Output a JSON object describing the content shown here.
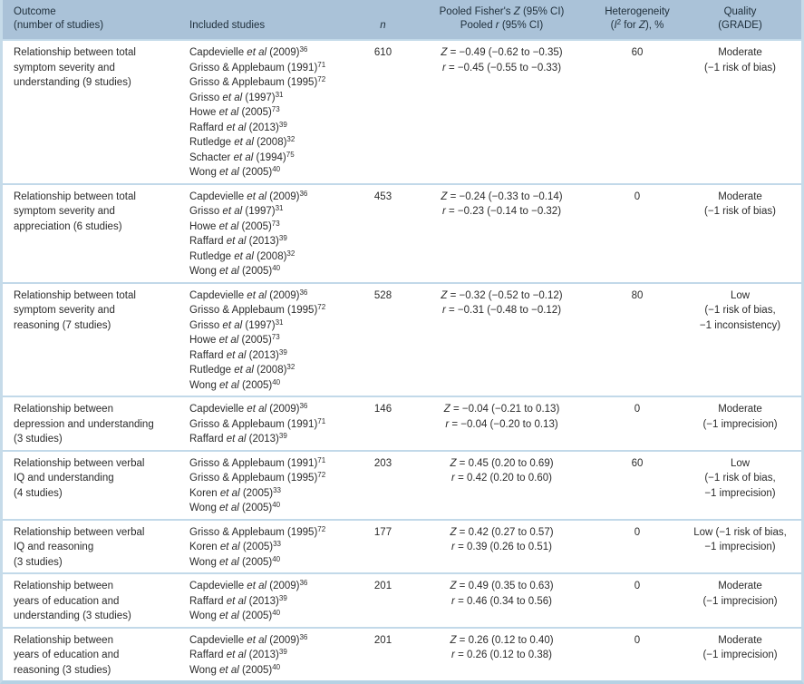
{
  "accent_colors": {
    "header_bg": "#aac2d8",
    "divider": "#c2d9e9",
    "outer_border": "#c6dbe9",
    "text": "#2b2b2b"
  },
  "table": {
    "columns": [
      {
        "id": "outcome",
        "align": "left",
        "header_lines": [
          "Outcome",
          "(number of studies)"
        ]
      },
      {
        "id": "studies",
        "align": "left",
        "header_lines": [
          "Included studies"
        ]
      },
      {
        "id": "n",
        "align": "center",
        "header_lines": [
          "|n|"
        ]
      },
      {
        "id": "pooled",
        "align": "center",
        "header_lines": [
          "Pooled Fisher's |Z| (95% CI)",
          "Pooled |r| (95% CI)"
        ]
      },
      {
        "id": "heterogeneity",
        "align": "center",
        "header_lines": [
          "Heterogeneity",
          "(|I|^2^ for |Z|), %"
        ]
      },
      {
        "id": "quality",
        "align": "center",
        "header_lines": [
          "Quality",
          "(GRADE)"
        ]
      }
    ],
    "rows": [
      {
        "outcome_lines": [
          "Relationship between total",
          "symptom severity and",
          "understanding (9 studies)"
        ],
        "studies": [
          "Capdevielle |et al| (2009)^36^",
          "Grisso & Applebaum (1991)^71^",
          "Grisso & Applebaum (1995)^72^",
          "Grisso |et al| (1997)^31^",
          "Howe |et al| (2005)^73^",
          "Raffard |et al| (2013)^39^",
          "Rutledge |et al| (2008)^32^",
          "Schacter |et al| (1994)^75^",
          "Wong |et al| (2005)^40^"
        ],
        "n": "610",
        "pooled_lines": [
          "|Z| = −0.49 (−0.62 to −0.35)",
          "|r| = −0.45 (−0.55 to −0.33)"
        ],
        "heterogeneity": "60",
        "quality_lines": [
          "Moderate",
          "(−1 risk of bias)"
        ]
      },
      {
        "outcome_lines": [
          "Relationship between total",
          "symptom severity and",
          "appreciation (6 studies)"
        ],
        "studies": [
          "Capdevielle |et al| (2009)^36^",
          "Grisso |et al| (1997)^31^",
          "Howe |et al| (2005)^73^",
          "Raffard |et al| (2013)^39^",
          "Rutledge |et al| (2008)^32^",
          "Wong |et al| (2005)^40^"
        ],
        "n": "453",
        "pooled_lines": [
          "|Z| = −0.24 (−0.33 to −0.14)",
          "|r| = −0.23 (−0.14 to −0.32)"
        ],
        "heterogeneity": "0",
        "quality_lines": [
          "Moderate",
          "(−1 risk of bias)"
        ]
      },
      {
        "outcome_lines": [
          "Relationship between total",
          "symptom severity and",
          "reasoning (7 studies)"
        ],
        "studies": [
          "Capdevielle |et al| (2009)^36^",
          "Grisso & Applebaum (1995)^72^",
          "Grisso |et al| (1997)^31^",
          "Howe |et al| (2005)^73^",
          "Raffard |et al| (2013)^39^",
          "Rutledge |et al| (2008)^32^",
          "Wong |et al| (2005)^40^"
        ],
        "n": "528",
        "pooled_lines": [
          "|Z| = −0.32 (−0.52 to −0.12)",
          "|r| = −0.31 (−0.48 to −0.12)"
        ],
        "heterogeneity": "80",
        "quality_lines": [
          "Low",
          "(−1 risk of bias,",
          "−1 inconsistency)"
        ]
      },
      {
        "outcome_lines": [
          "Relationship between",
          "depression and understanding",
          "(3 studies)"
        ],
        "studies": [
          "Capdevielle |et al| (2009)^36^",
          "Grisso & Applebaum (1991)^71^",
          "Raffard |et al| (2013)^39^"
        ],
        "n": "146",
        "pooled_lines": [
          "|Z| = −0.04 (−0.21 to 0.13)",
          "|r| = −0.04 (−0.20 to 0.13)"
        ],
        "heterogeneity": "0",
        "quality_lines": [
          "Moderate",
          "(−1 imprecision)"
        ]
      },
      {
        "outcome_lines": [
          "Relationship between verbal",
          "IQ and understanding",
          "(4 studies)"
        ],
        "studies": [
          "Grisso & Applebaum (1991)^71^",
          "Grisso & Applebaum (1995)^72^",
          "Koren |et al| (2005)^33^",
          "Wong |et al| (2005)^40^"
        ],
        "n": "203",
        "pooled_lines": [
          "|Z| = 0.45 (0.20 to 0.69)",
          "|r| = 0.42 (0.20 to 0.60)"
        ],
        "heterogeneity": "60",
        "quality_lines": [
          "Low",
          "(−1 risk of bias,",
          "−1 imprecision)"
        ]
      },
      {
        "outcome_lines": [
          "Relationship between verbal",
          "IQ and reasoning",
          "(3 studies)"
        ],
        "studies": [
          "Grisso & Applebaum (1995)^72^",
          "Koren |et al| (2005)^33^",
          "Wong |et al| (2005)^40^"
        ],
        "n": "177",
        "pooled_lines": [
          "|Z| = 0.42 (0.27 to 0.57)",
          "|r| = 0.39 (0.26 to 0.51)"
        ],
        "heterogeneity": "0",
        "quality_lines": [
          "Low (−1 risk of bias,",
          "−1 imprecision)"
        ]
      },
      {
        "outcome_lines": [
          "Relationship between",
          "years of education and",
          "understanding (3 studies)"
        ],
        "studies": [
          "Capdevielle |et al| (2009)^36^",
          "Raffard |et al| (2013)^39^",
          "Wong |et al| (2005)^40^"
        ],
        "n": "201",
        "pooled_lines": [
          "|Z| = 0.49 (0.35 to 0.63)",
          "|r| = 0.46 (0.34 to 0.56)"
        ],
        "heterogeneity": "0",
        "quality_lines": [
          "Moderate",
          "(−1 imprecision)"
        ]
      },
      {
        "outcome_lines": [
          "Relationship between",
          "years of education and",
          "reasoning (3 studies)"
        ],
        "studies": [
          "Capdevielle |et al| (2009)^36^",
          "Raffard |et al| (2013)^39^",
          "Wong |et al| (2005)^40^"
        ],
        "n": "201",
        "pooled_lines": [
          "|Z| = 0.26 (0.12 to 0.40)",
          "|r| = 0.26 (0.12 to 0.38)"
        ],
        "heterogeneity": "0",
        "quality_lines": [
          "Moderate",
          "(−1 imprecision)"
        ]
      }
    ]
  }
}
